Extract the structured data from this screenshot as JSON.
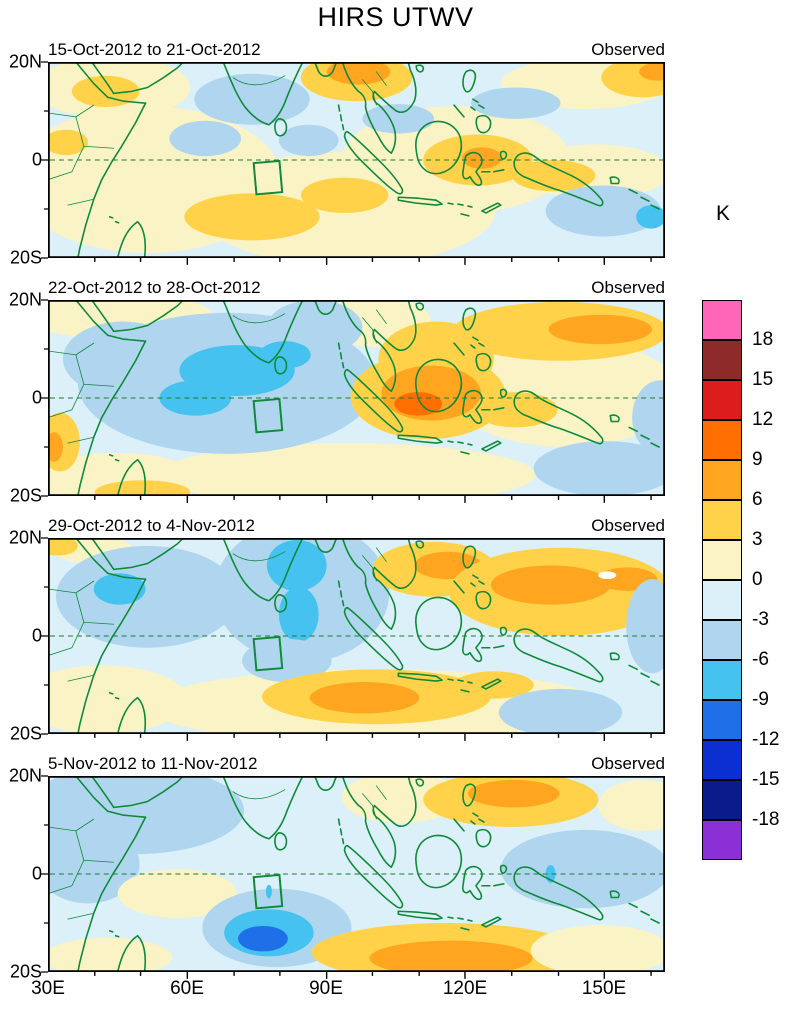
{
  "title": "HIRS UTWV",
  "panels": [
    {
      "title": "15-Oct-2012 to 21-Oct-2012",
      "source_label": "Observed"
    },
    {
      "title": "22-Oct-2012 to 28-Oct-2012",
      "source_label": "Observed"
    },
    {
      "title": "29-Oct-2012 to 4-Nov-2012",
      "source_label": "Observed"
    },
    {
      "title": "5-Nov-2012 to 11-Nov-2012",
      "source_label": "Observed"
    }
  ],
  "axes": {
    "y_ticks": [
      "20N",
      "0",
      "20S"
    ],
    "x_ticks": [
      "30E",
      "60E",
      "90E",
      "120E",
      "150E"
    ]
  },
  "colorbar": {
    "unit_label": "K",
    "tick_labels": [
      "18",
      "15",
      "12",
      "9",
      "6",
      "3",
      "0",
      "-3",
      "-6",
      "-9",
      "-12",
      "-15",
      "-18"
    ],
    "colors": [
      "#FF66B8",
      "#8F2A2A",
      "#DD1C1C",
      "#FF6E00",
      "#FFA520",
      "#FFD24A",
      "#FAF3C6",
      "#DBF0F8",
      "#AFD6EE",
      "#45C2F0",
      "#1E6FE8",
      "#0B2FD0",
      "#0A1C8C",
      "#8B2FD6"
    ],
    "accent_colors": {
      "coastline_green": "#0E8A3A",
      "frame_black": "#000000"
    }
  },
  "chart_data": {
    "type": "heatmap",
    "title": "HIRS UTWV",
    "units": "K",
    "panel_titles": [
      "15-Oct-2012 to 21-Oct-2012",
      "22-Oct-2012 to 28-Oct-2012",
      "29-Oct-2012 to 4-Nov-2012",
      "5-Nov-2012 to 11-Nov-2012"
    ],
    "panel_source": "Observed",
    "x_axis": {
      "tick_labels": [
        "30E",
        "60E",
        "90E",
        "120E",
        "150E"
      ],
      "range_deg_east": [
        30,
        163
      ]
    },
    "y_axis": {
      "tick_labels": [
        "20N",
        "0",
        "20S"
      ],
      "range_deg_north": [
        -20,
        20
      ]
    },
    "contour_levels": [
      -18,
      -15,
      -12,
      -9,
      -6,
      -3,
      0,
      3,
      6,
      9,
      12,
      15,
      18
    ],
    "palette_low_to_high": [
      "#8B2FD6",
      "#0A1C8C",
      "#0B2FD0",
      "#1E6FE8",
      "#45C2F0",
      "#AFD6EE",
      "#DBF0F8",
      "#FAF3C6",
      "#FFD24A",
      "#FFA520",
      "#FF6E00",
      "#DD1C1C",
      "#8F2A2A",
      "#FF66B8"
    ],
    "map_features": {
      "coastlines": "green",
      "equator_line": "dashed at 0 latitude",
      "study_region_box": "green outlined box near 75E-80E, 0-7S in every panel"
    },
    "panel_summaries": [
      "Moist (positive, yellow/orange) anomalies over Maritime Continent and far NW Pacific; scattered weak dry (blue) patches over central Indian Ocean and SW Pacific",
      "Strong dry (cyan/blue) anomalies over the central-western Indian Ocean; strong moist (orange) anomalies over Sumatra/Borneo and the western Pacific",
      "Dry anomalies centered over India and the central Indian Ocean; moist anomalies over the Philippine Sea and a moist band near 10S, 80-110E",
      "Dry anomalies over NW Indian Ocean and a blue core near 60-75E, 15S; moist band along 10-15S from 90E to 130E and over 110-130E, 15N"
    ]
  }
}
